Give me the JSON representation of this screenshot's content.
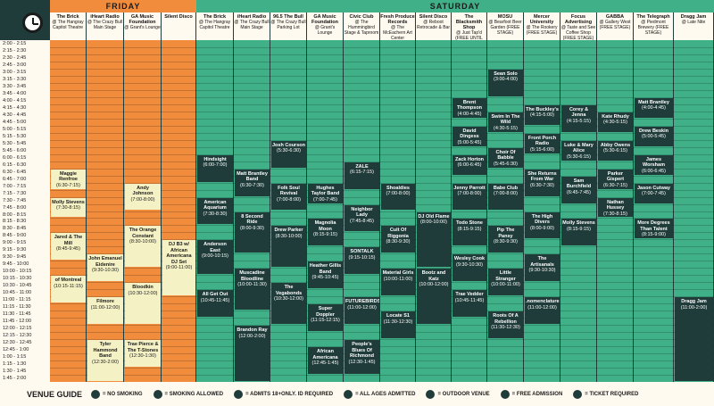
{
  "day_labels": {
    "friday": "FRIDAY",
    "saturday": "SATURDAY"
  },
  "times": [
    "2:00 - 2:15",
    "2:15 - 2:30",
    "2:30 - 2:45",
    "2:45 - 3:00",
    "3:00 - 3:15",
    "3:15 - 3:30",
    "3:30 - 3:45",
    "3:45 - 4:00",
    "4:00 - 4:15",
    "4:15 - 4:30",
    "4:30 - 4:45",
    "4:45 - 5:00",
    "5:00 - 5:15",
    "5:15 - 5:30",
    "5:30 - 5:45",
    "5:45 - 6:00",
    "6:00 - 6:15",
    "6:15 - 6:30",
    "6:30 - 6:45",
    "6:45 - 7:00",
    "7:00 - 7:15",
    "7:15 - 7:30",
    "7:30 - 7:45",
    "7:45 - 8:00",
    "8:00 - 8:15",
    "8:15 - 8:30",
    "8:30 - 8:45",
    "8:45 - 9:00",
    "9:00 - 9:15",
    "9:15 - 9:30",
    "9:30 - 9:45",
    "9:45 - 10:00",
    "10:00 - 10:15",
    "10:15 - 10:30",
    "10:30 - 10:45",
    "10:45 - 11:00",
    "11:00 - 11:15",
    "11:15 - 11:30",
    "11:30 - 11:45",
    "11:45 - 12:00",
    "12:00 - 12:15",
    "12:15 - 12:30",
    "12:30 - 12:45",
    "12:45 - 1:00",
    "1:00 - 1:15",
    "1:15 - 1:30",
    "1:30 - 1:45",
    "1:45 - 2:00"
  ],
  "venues": [
    {
      "name": "The Brick",
      "sub": "@ The Hangray Capitol Theatre"
    },
    {
      "name": "iHeart Radio",
      "sub": "@ The Crazy Bull Main Stage"
    },
    {
      "name": "GA Music Foundation",
      "sub": "@ Grant's Lounge"
    },
    {
      "name": "Silent Disco",
      "sub": ""
    },
    {
      "name": "The Brick",
      "sub": "@ The Hangray Capitol Theatre"
    },
    {
      "name": "iHeart Radio",
      "sub": "@ The Crazy Bull Main Stage"
    },
    {
      "name": "96.5 The Bull",
      "sub": "@ The Crazy Bull Parking Lot"
    },
    {
      "name": "GA Music Foundation",
      "sub": "@ Grant's Lounge"
    },
    {
      "name": "Civic Club",
      "sub": "@ The Hummingbird Stage & Taproom"
    },
    {
      "name": "Fresh Produce Records",
      "sub": "@ The McEachern Art Center"
    },
    {
      "name": "Silent Disco",
      "sub": "@ Reboot Retrocade & Bar"
    },
    {
      "name": "The Blacksmith Shop",
      "sub": "@ Just Tap'd (FREE UNTIL 8PM)"
    },
    {
      "name": "MOSU",
      "sub": "@ Bearfoot Beer Garden (FREE STAGE)"
    },
    {
      "name": "Mercer University",
      "sub": "@ The Rookery (FREE STAGE)"
    },
    {
      "name": "Focus Advertising",
      "sub": "@ Taste and See Coffee Shop (FREE STAGE)"
    },
    {
      "name": "GABBA",
      "sub": "@ Gallery West (FREE STAGE)"
    },
    {
      "name": "The Telegraph",
      "sub": "@ Piedmont Brewery (FREE STAGE)"
    },
    {
      "name": "Dragg Jam",
      "sub": "@ Late Nite"
    }
  ],
  "acts": [
    {
      "col": 0,
      "s": "Maggie Renfroe",
      "t": "(6:30-7:15)",
      "a": 18,
      "b": 21
    },
    {
      "col": 0,
      "s": "Molly Stevens",
      "t": "(7:30-8:15)",
      "a": 22,
      "b": 25
    },
    {
      "col": 0,
      "s": "Jared & The Mill",
      "t": "(8:45-9:45)",
      "a": 27,
      "b": 31
    },
    {
      "col": 0,
      "s": "of Montreal",
      "t": "(10:15-11:15)",
      "a": 33,
      "b": 37
    },
    {
      "col": 1,
      "s": "John Emanuel Eidenire",
      "t": "(9:30-10:30)",
      "a": 30,
      "b": 34
    },
    {
      "col": 1,
      "s": "Filmore",
      "t": "(11:00-12:00)",
      "a": 36,
      "b": 40
    },
    {
      "col": 1,
      "s": "Tyler Hammond Band",
      "t": "(12:30-2:00)",
      "a": 42,
      "b": 48
    },
    {
      "col": 2,
      "s": "Andy Johnson",
      "t": "(7:00-8:00)",
      "a": 20,
      "b": 24
    },
    {
      "col": 2,
      "s": "The Orange Constant",
      "t": "(8:30-10:00)",
      "a": 26,
      "b": 32
    },
    {
      "col": 2,
      "s": "Bloodkin",
      "t": "(10:30-12:00)",
      "a": 34,
      "b": 40
    },
    {
      "col": 2,
      "s": "Trae Pierce & The T-Stones",
      "t": "(12:30-1:30)",
      "a": 42,
      "b": 46
    },
    {
      "col": 3,
      "s": "DJ B3 w/ African Americana DJ Set",
      "t": "(9:00-11:00)",
      "a": 28,
      "b": 36
    },
    {
      "col": 4,
      "s": "Hindsight",
      "t": "(6:00-7:00)",
      "a": 16,
      "b": 20
    },
    {
      "col": 4,
      "s": "American Aquarium",
      "t": "(7:30-8:30)",
      "a": 22,
      "b": 26
    },
    {
      "col": 4,
      "s": "Anderson East",
      "t": "(9:00-10:15)",
      "a": 28,
      "b": 33
    },
    {
      "col": 4,
      "s": "All Get Out",
      "t": "(10:45-11:45)",
      "a": 35,
      "b": 39
    },
    {
      "col": 5,
      "s": "Matt Brantley Band",
      "t": "(6:30-7:30)",
      "a": 18,
      "b": 22
    },
    {
      "col": 5,
      "s": "8 Second Ride",
      "t": "(8:00-9:30)",
      "a": 24,
      "b": 30
    },
    {
      "col": 5,
      "s": "Muscadine Bloodline",
      "t": "(10:00-11:30)",
      "a": 32,
      "b": 38
    },
    {
      "col": 5,
      "s": "Brandon Ray",
      "t": "(12:00-2:00)",
      "a": 40,
      "b": 48
    },
    {
      "col": 6,
      "s": "Josh Courson",
      "t": "(5:30-6:30)",
      "a": 14,
      "b": 18
    },
    {
      "col": 6,
      "s": "Folk Soul Revival",
      "t": "(7:00-8:00)",
      "a": 20,
      "b": 24
    },
    {
      "col": 6,
      "s": "Drew Parker",
      "t": "(8:30-10:00)",
      "a": 26,
      "b": 32
    },
    {
      "col": 6,
      "s": "The Vegabonds",
      "t": "(10:30-12:00)",
      "a": 34,
      "b": 40
    },
    {
      "col": 7,
      "s": "Hughes Taylor Band",
      "t": "(7:00-7:45)",
      "a": 20,
      "b": 23
    },
    {
      "col": 7,
      "s": "Magnolia Moon",
      "t": "(8:15-9:15)",
      "a": 25,
      "b": 29
    },
    {
      "col": 7,
      "s": "Heather Gillis Band",
      "t": "(9:45-10:45)",
      "a": 31,
      "b": 35
    },
    {
      "col": 7,
      "s": "Super Doppler",
      "t": "(11:15-12:15)",
      "a": 37,
      "b": 41
    },
    {
      "col": 7,
      "s": "African Americana",
      "t": "(12:45-1:45)",
      "a": 43,
      "b": 47
    },
    {
      "col": 8,
      "s": "ZALE",
      "t": "(6:15-7:15)",
      "a": 17,
      "b": 21
    },
    {
      "col": 8,
      "s": "Neighbor Lady",
      "t": "(7:45-8:45)",
      "a": 23,
      "b": 27
    },
    {
      "col": 8,
      "s": "SONTALK",
      "t": "(9:15-10:15)",
      "a": 29,
      "b": 33
    },
    {
      "col": 8,
      "s": "FUTUREBIRDS",
      "t": "(11:00-12:00)",
      "a": 36,
      "b": 40
    },
    {
      "col": 8,
      "s": "People's Blues Of Richmond",
      "t": "(12:30-1:45)",
      "a": 42,
      "b": 47
    },
    {
      "col": 9,
      "s": "Shoaldies",
      "t": "(7:00-8:00)",
      "a": 20,
      "b": 24
    },
    {
      "col": 9,
      "s": "Cult Of Riggonia",
      "t": "(8:30-9:30)",
      "a": 26,
      "b": 30
    },
    {
      "col": 9,
      "s": "Material Girls",
      "t": "(10:00-11:00)",
      "a": 32,
      "b": 36
    },
    {
      "col": 9,
      "s": "Locate S1",
      "t": "(11:30-12:30)",
      "a": 38,
      "b": 42
    },
    {
      "col": 10,
      "s": "DJ Old Flame",
      "t": "(8:00-10:00)",
      "a": 24,
      "b": 32
    },
    {
      "col": 10,
      "s": "Bootz and Katz",
      "t": "(10:00-12:00)",
      "a": 32,
      "b": 40
    },
    {
      "col": 11,
      "s": "Brent Thompson",
      "t": "(4:00-4:45)",
      "a": 8,
      "b": 11
    },
    {
      "col": 11,
      "s": "David Dingess",
      "t": "(5:00-5:45)",
      "a": 12,
      "b": 15
    },
    {
      "col": 11,
      "s": "Zack Horton",
      "t": "(6:00-6:45)",
      "a": 16,
      "b": 19
    },
    {
      "col": 11,
      "s": "Jenny Parrott",
      "t": "(7:00-8:00)",
      "a": 20,
      "b": 24
    },
    {
      "col": 11,
      "s": "Todo Stone",
      "t": "(8:15-9:15)",
      "a": 25,
      "b": 29
    },
    {
      "col": 11,
      "s": "Wesley Cook",
      "t": "(9:30-10:30)",
      "a": 30,
      "b": 34
    },
    {
      "col": 11,
      "s": "Trae Vedder",
      "t": "(10:45-11:45)",
      "a": 35,
      "b": 39
    },
    {
      "col": 12,
      "s": "Sean Solo",
      "t": "(3:00-4:00)",
      "a": 4,
      "b": 8
    },
    {
      "col": 12,
      "s": "Swim In The Wild",
      "t": "(4:30-5:15)",
      "a": 10,
      "b": 13
    },
    {
      "col": 12,
      "s": "Choir Of Babble",
      "t": "(5:45-6:30)",
      "a": 15,
      "b": 18
    },
    {
      "col": 12,
      "s": "Babe Club",
      "t": "(7:00-8:00)",
      "a": 20,
      "b": 24
    },
    {
      "col": 12,
      "s": "Pip The Pansy",
      "t": "(8:30-9:30)",
      "a": 26,
      "b": 30
    },
    {
      "col": 12,
      "s": "Little Stranger",
      "t": "(10:00-11:00)",
      "a": 32,
      "b": 36
    },
    {
      "col": 12,
      "s": "Roots Of A Rebellion",
      "t": "(11:30-12:30)",
      "a": 38,
      "b": 42
    },
    {
      "col": 13,
      "s": "The Buckley's",
      "t": "(4:15-5:00)",
      "a": 9,
      "b": 12
    },
    {
      "col": 13,
      "s": "Front Porch Radio",
      "t": "(5:15-6:00)",
      "a": 13,
      "b": 16
    },
    {
      "col": 13,
      "s": "She Returns From War",
      "t": "(6:30-7:30)",
      "a": 18,
      "b": 22
    },
    {
      "col": 13,
      "s": "The High Divers",
      "t": "(8:00-9:00)",
      "a": 24,
      "b": 28
    },
    {
      "col": 13,
      "s": "The Artisanals",
      "t": "(9:30-10:30)",
      "a": 30,
      "b": 34
    },
    {
      "col": 13,
      "s": ".nomenclature",
      "t": "(11:00-12:00)",
      "a": 36,
      "b": 40
    },
    {
      "col": 14,
      "s": "Corey & Jenna",
      "t": "(4:15-5:15)",
      "a": 9,
      "b": 13
    },
    {
      "col": 14,
      "s": "Luke & Mary Alice",
      "t": "(5:30-6:15)",
      "a": 14,
      "b": 17
    },
    {
      "col": 14,
      "s": "Sam Burchfield",
      "t": "(6:45-7:45)",
      "a": 19,
      "b": 23
    },
    {
      "col": 14,
      "s": "Molly Stevens",
      "t": "(8:15-9:15)",
      "a": 25,
      "b": 29
    },
    {
      "col": 15,
      "s": "Kate Rhudy",
      "t": "(4:30-5:15)",
      "a": 10,
      "b": 13
    },
    {
      "col": 15,
      "s": "Abby Owens",
      "t": "(5:30-6:15)",
      "a": 14,
      "b": 17
    },
    {
      "col": 15,
      "s": "Parker Gispert",
      "t": "(6:30-7:15)",
      "a": 18,
      "b": 21
    },
    {
      "col": 15,
      "s": "Nathan Hussey",
      "t": "(7:30-8:15)",
      "a": 22,
      "b": 25
    },
    {
      "col": 16,
      "s": "Matt Brantley",
      "t": "(4:00-4:45)",
      "a": 8,
      "b": 11
    },
    {
      "col": 16,
      "s": "Drew Beskin",
      "t": "(5:00-5:45)",
      "a": 12,
      "b": 15
    },
    {
      "col": 16,
      "s": "James Worsham",
      "t": "(6:00-6:45)",
      "a": 16,
      "b": 19
    },
    {
      "col": 16,
      "s": "Jason Cutway",
      "t": "(7:00-7:45)",
      "a": 20,
      "b": 23
    },
    {
      "col": 16,
      "s": "More Degrees Than Talent",
      "t": "(8:15-9:00)",
      "a": 25,
      "b": 28
    },
    {
      "col": 17,
      "s": "Dragg Jam",
      "t": "(11:00-2:00)",
      "a": 36,
      "b": 48
    }
  ],
  "legend": {
    "title": "VENUE GUIDE",
    "items": [
      "= NO SMOKING",
      "= SMOKING ALLOWED",
      "= ADMITS 18+ONLY. ID REQUIRED",
      "= ALL AGES ADMITTED",
      "= OUTDOOR VENUE",
      "= FREE ADMISSION",
      "= TICKET REQUIRED"
    ]
  },
  "colors": {
    "friday": "#f08c3c",
    "saturday": "#3fb088",
    "dark": "#1f3c3a"
  }
}
